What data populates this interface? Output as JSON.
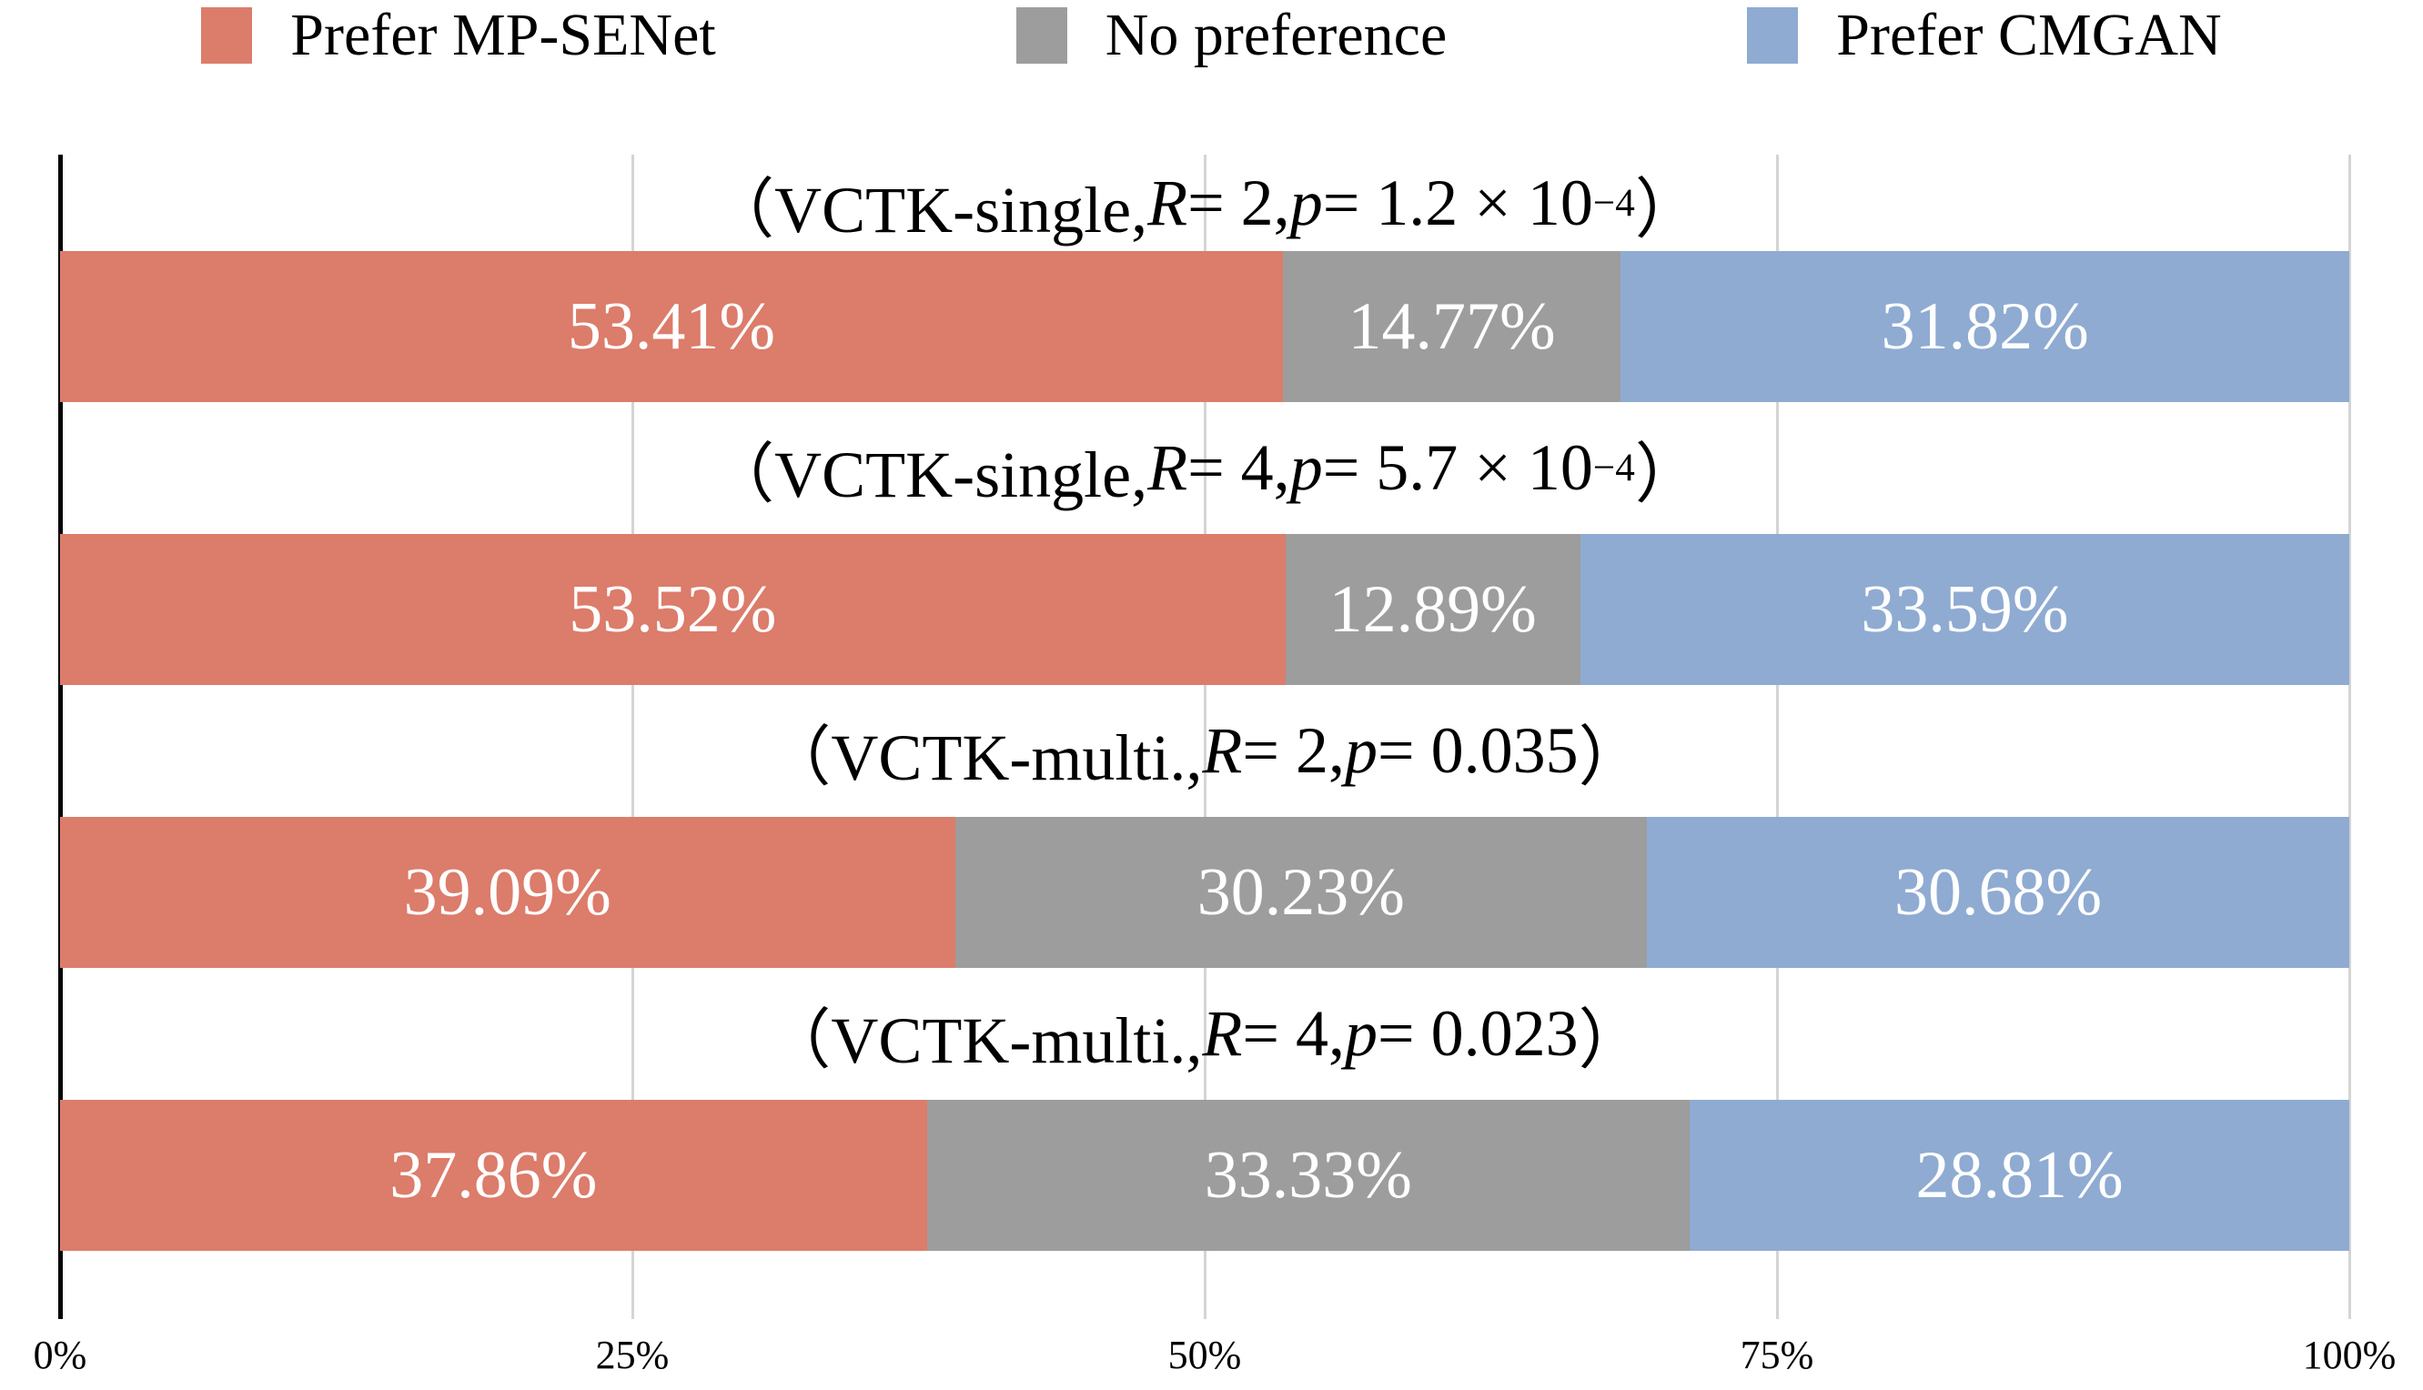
{
  "figure": {
    "background": "#FFFFFF",
    "text_color": "#000000",
    "bar_label_color": "#FFFFFF",
    "gridline_color": "#D4D4D4",
    "axis_line_color": "#000000"
  },
  "legend": {
    "position": "top",
    "items": [
      {
        "label": "Prefer MP-SENet",
        "color": "#DC7C6B"
      },
      {
        "label": "No preference",
        "color": "#9D9D9D"
      },
      {
        "label": "Prefer CMGAN",
        "color": "#8FABD2"
      }
    ]
  },
  "chart_data": {
    "type": "bar",
    "orientation": "horizontal",
    "stacked": true,
    "grid": "vertical",
    "legend_position": "top",
    "xlim": [
      0,
      100
    ],
    "x_tick_values": [
      0,
      25,
      50,
      75,
      100
    ],
    "x_tick_labels": [
      "0%",
      "25%",
      "50%",
      "75%",
      "100%"
    ],
    "series": [
      {
        "name": "Prefer MP-SENet",
        "color": "#DC7C6B",
        "values": [
          53.41,
          53.52,
          39.09,
          37.86
        ]
      },
      {
        "name": "No preference",
        "color": "#9D9D9D",
        "values": [
          14.77,
          12.89,
          30.23,
          33.33
        ]
      },
      {
        "name": "Prefer CMGAN",
        "color": "#8FABD2",
        "values": [
          31.82,
          33.59,
          30.68,
          28.81
        ]
      }
    ],
    "groups": [
      {
        "title_plain": "（VCTK-single, R = 2, p = 1.2 × 10−4）",
        "title_segments": [
          {
            "text": "（VCTK-single, ",
            "style": "n"
          },
          {
            "text": "R",
            "style": "i"
          },
          {
            "text": " = 2, ",
            "style": "n"
          },
          {
            "text": "p",
            "style": "i"
          },
          {
            "text": " = 1.2 × 10",
            "style": "n"
          },
          {
            "text": "−4",
            "style": "sup"
          },
          {
            "text": "）",
            "style": "n"
          }
        ],
        "values": [
          53.41,
          14.77,
          31.82
        ],
        "labels": [
          "53.41%",
          "14.77%",
          "31.82%"
        ]
      },
      {
        "title_plain": "（VCTK-single, R = 4, p = 5.7 × 10−4）",
        "title_segments": [
          {
            "text": "（VCTK-single, ",
            "style": "n"
          },
          {
            "text": "R",
            "style": "i"
          },
          {
            "text": " = 4, ",
            "style": "n"
          },
          {
            "text": "p",
            "style": "i"
          },
          {
            "text": " = 5.7 × 10",
            "style": "n"
          },
          {
            "text": "−4",
            "style": "sup"
          },
          {
            "text": "）",
            "style": "n"
          }
        ],
        "values": [
          53.52,
          12.89,
          33.59
        ],
        "labels": [
          "53.52%",
          "12.89%",
          "33.59%"
        ]
      },
      {
        "title_plain": "（VCTK-multi., R = 2, p = 0.035）",
        "title_segments": [
          {
            "text": "（VCTK-multi., ",
            "style": "n"
          },
          {
            "text": "R",
            "style": "i"
          },
          {
            "text": " = 2, ",
            "style": "n"
          },
          {
            "text": "p",
            "style": "i"
          },
          {
            "text": " = 0.035",
            "style": "n"
          },
          {
            "text": "）",
            "style": "n"
          }
        ],
        "values": [
          39.09,
          30.23,
          30.68
        ],
        "labels": [
          "39.09%",
          "30.23%",
          "30.68%"
        ]
      },
      {
        "title_plain": "（VCTK-multi., R = 4, p = 0.023）",
        "title_segments": [
          {
            "text": "（VCTK-multi., ",
            "style": "n"
          },
          {
            "text": "R",
            "style": "i"
          },
          {
            "text": " = 4, ",
            "style": "n"
          },
          {
            "text": "p",
            "style": "i"
          },
          {
            "text": " = 0.023",
            "style": "n"
          },
          {
            "text": "）",
            "style": "n"
          }
        ],
        "values": [
          37.86,
          33.33,
          28.81
        ],
        "labels": [
          "37.86%",
          "33.33%",
          "28.81%"
        ]
      }
    ]
  }
}
